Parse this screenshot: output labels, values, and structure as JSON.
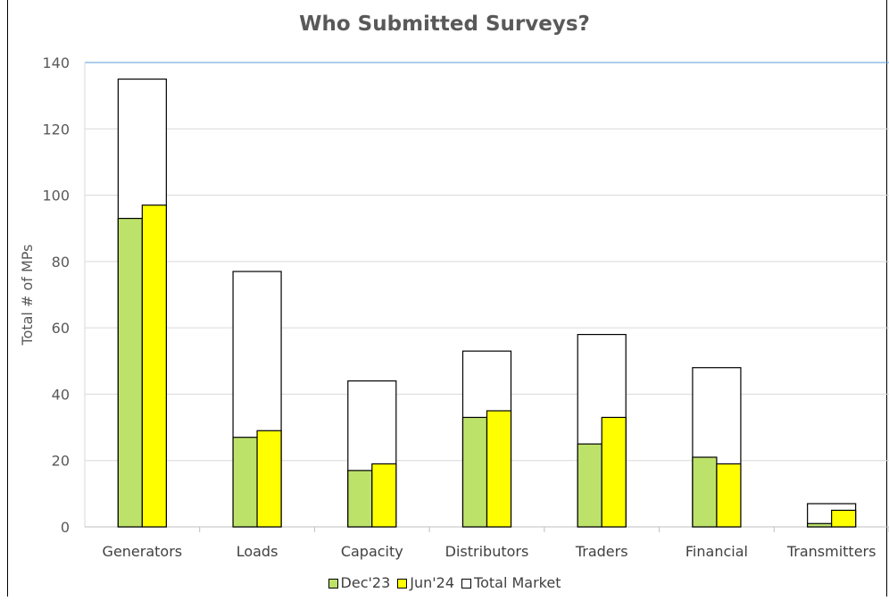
{
  "chart_data": {
    "type": "bar",
    "title": "Who Submitted Surveys?",
    "xlabel": "",
    "ylabel": "Total # of MPs",
    "categories": [
      "Generators",
      "Loads",
      "Capacity",
      "Distributors",
      "Traders",
      "Financial",
      "Transmitters"
    ],
    "series": [
      {
        "name": "Dec'23",
        "values": [
          93,
          27,
          17,
          33,
          25,
          21,
          1
        ],
        "color": "#bde26a"
      },
      {
        "name": "Jun'24",
        "values": [
          97,
          29,
          19,
          35,
          33,
          19,
          5
        ],
        "color": "#ffff00"
      },
      {
        "name": "Total Market",
        "values": [
          135,
          77,
          44,
          53,
          58,
          48,
          7
        ],
        "color": "#ffffff"
      }
    ],
    "ylim": [
      0,
      140
    ],
    "yticks": [
      0,
      20,
      40,
      60,
      80,
      100,
      120,
      140
    ],
    "grid": true,
    "legend_position": "bottom",
    "colors": {
      "gridline": "#d9d9d9",
      "bar_outline": "#000000",
      "axis_accent": "#5b9bd5"
    }
  }
}
